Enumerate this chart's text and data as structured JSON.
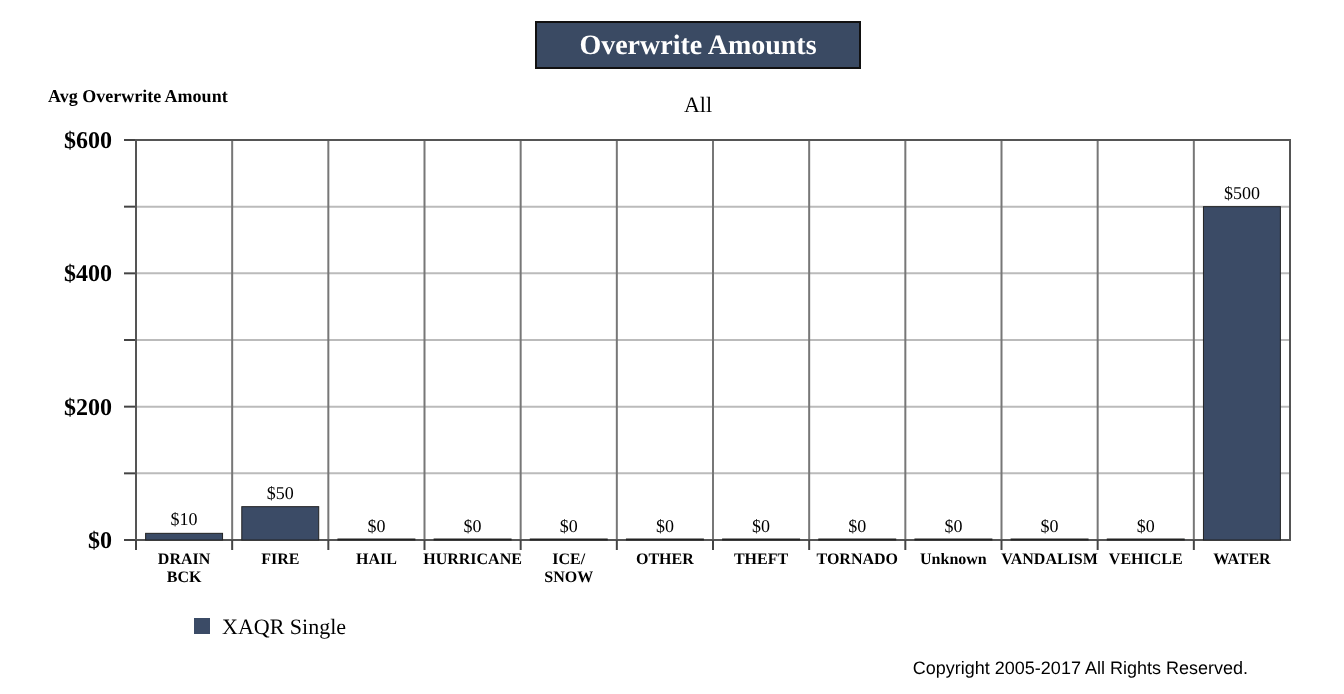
{
  "chart_data": {
    "type": "bar",
    "title": "Overwrite Amounts",
    "subtitle": "All",
    "ylabel": "Avg Overwrite Amount",
    "categories": [
      "DRAIN\nBCK",
      "FIRE",
      "HAIL",
      "HURRICANE",
      "ICE/\nSNOW",
      "OTHER",
      "THEFT",
      "TORNADO",
      "Unknown",
      "VANDALISM",
      "VEHICLE",
      "WATER"
    ],
    "series": [
      {
        "name": "XAQR Single",
        "color": "#3b4b66",
        "values": [
          10,
          50,
          0,
          0,
          0,
          0,
          0,
          0,
          0,
          0,
          0,
          500
        ],
        "value_labels": [
          "$10",
          "$50",
          "$0",
          "$0",
          "$0",
          "$0",
          "$0",
          "$0",
          "$0",
          "$0",
          "$0",
          "$500"
        ]
      }
    ],
    "ylim": [
      0,
      600
    ],
    "yticks": [
      {
        "value": 0,
        "label": "$0"
      },
      {
        "value": 100,
        "label": null
      },
      {
        "value": 200,
        "label": "$200"
      },
      {
        "value": 300,
        "label": null
      },
      {
        "value": 400,
        "label": "$400"
      },
      {
        "value": 500,
        "label": null
      },
      {
        "value": 600,
        "label": "$600"
      }
    ],
    "grid": true,
    "legend": "bottom left",
    "annotations": [
      "Copyright 2005-2017 All Rights Reserved."
    ]
  }
}
